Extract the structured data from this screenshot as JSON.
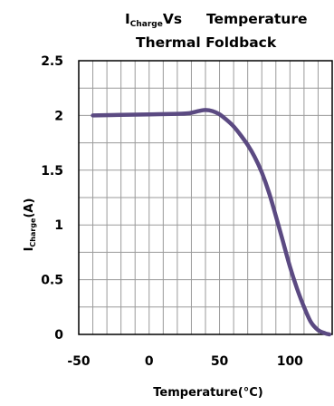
{
  "chart_data": {
    "type": "line",
    "title": {
      "line1_main": "I",
      "line1_sub": "Charge",
      "line1_rest": "Vs",
      "line1_right": "Temperature",
      "line2": "Thermal Foldback"
    },
    "xlabel": "Temperature(°C)",
    "ylabel": {
      "main": "I",
      "sub": "Charge",
      "rest": "(A)"
    },
    "xlim": [
      -50,
      130
    ],
    "ylim": [
      0,
      2.5
    ],
    "x_ticks": [
      "-50",
      "0",
      "50",
      "100"
    ],
    "x_tick_values": [
      -50,
      0,
      50,
      100
    ],
    "y_ticks": [
      "2.5",
      "2",
      "1.5",
      "1",
      "0.5",
      "0"
    ],
    "y_tick_values": [
      2.5,
      2,
      1.5,
      1,
      0.5,
      0
    ],
    "grid": true,
    "series": [
      {
        "color": "#5b4a82",
        "x": [
          -40,
          -20,
          0,
          20,
          28,
          35,
          40,
          45,
          50,
          55,
          60,
          65,
          70,
          75,
          80,
          85,
          90,
          95,
          100,
          105,
          110,
          115,
          120,
          125,
          128
        ],
        "y": [
          2.0,
          2.005,
          2.01,
          2.015,
          2.02,
          2.04,
          2.05,
          2.04,
          2.01,
          1.96,
          1.9,
          1.82,
          1.73,
          1.62,
          1.48,
          1.3,
          1.08,
          0.85,
          0.62,
          0.42,
          0.25,
          0.11,
          0.04,
          0.01,
          0.0
        ]
      }
    ]
  }
}
